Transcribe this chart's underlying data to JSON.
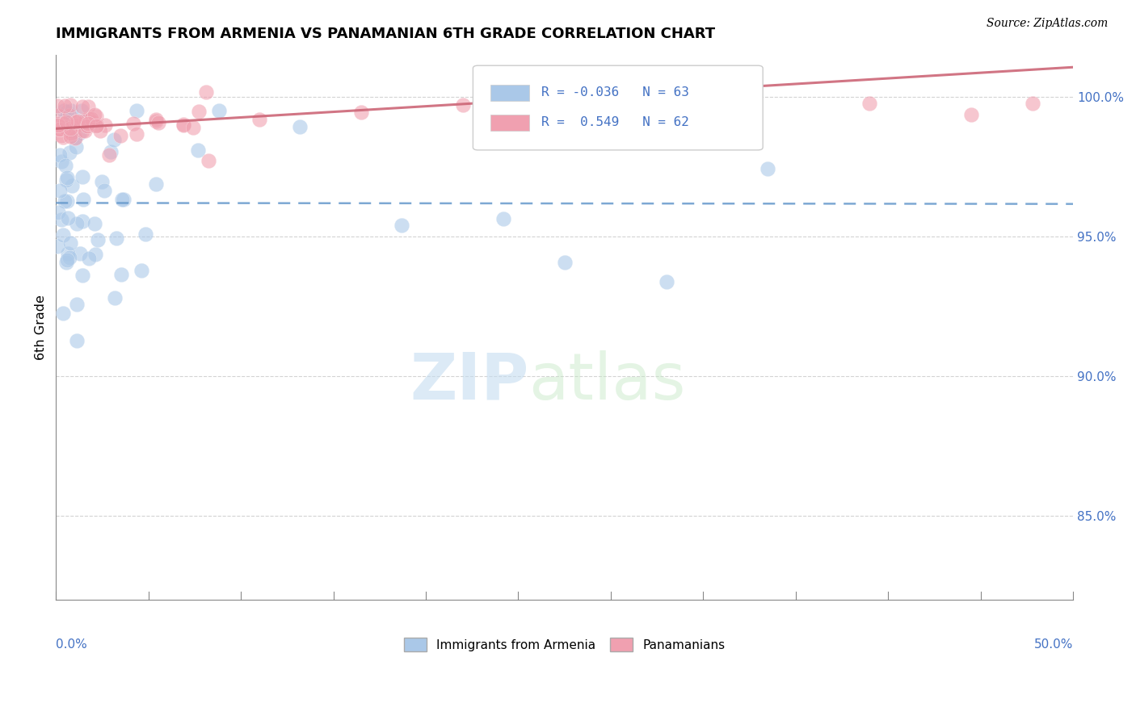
{
  "title": "IMMIGRANTS FROM ARMENIA VS PANAMANIAN 6TH GRADE CORRELATION CHART",
  "source": "Source: ZipAtlas.com",
  "ylabel": "6th Grade",
  "xlim": [
    0.0,
    50.0
  ],
  "ylim": [
    82.0,
    101.5
  ],
  "yticks": [
    85.0,
    90.0,
    95.0,
    100.0
  ],
  "ytick_labels": [
    "85.0%",
    "90.0%",
    "95.0%",
    "100.0%"
  ],
  "blue_color": "#aac8e8",
  "pink_color": "#f0a0b0",
  "blue_trend_color": "#6699cc",
  "pink_trend_color": "#cc6677",
  "R_blue": -0.036,
  "N_blue": 63,
  "R_pink": 0.549,
  "N_pink": 62,
  "legend_label_blue": "Immigrants from Armenia",
  "legend_label_pink": "Panamanians",
  "watermark_zip": "ZIP",
  "watermark_atlas": "atlas"
}
